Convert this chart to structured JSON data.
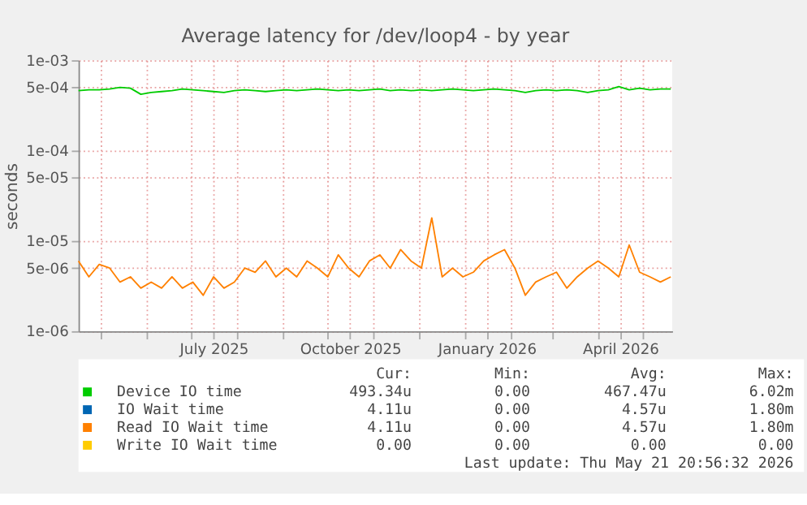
{
  "chart_data": {
    "type": "line",
    "title": "Average latency for /dev/loop4 - by year",
    "ylabel": "seconds",
    "x": [
      "2025-04-16",
      "2025-04-23",
      "2025-04-30",
      "2025-05-07",
      "2025-05-14",
      "2025-05-21",
      "2025-05-28",
      "2025-06-04",
      "2025-06-11",
      "2025-06-18",
      "2025-06-25",
      "2025-07-02",
      "2025-07-09",
      "2025-07-16",
      "2025-07-23",
      "2025-07-30",
      "2025-08-06",
      "2025-08-13",
      "2025-08-20",
      "2025-08-27",
      "2025-09-03",
      "2025-09-10",
      "2025-09-17",
      "2025-09-24",
      "2025-10-01",
      "2025-10-08",
      "2025-10-15",
      "2025-10-22",
      "2025-10-29",
      "2025-11-05",
      "2025-11-12",
      "2025-11-19",
      "2025-11-26",
      "2025-12-03",
      "2025-12-10",
      "2025-12-17",
      "2025-12-24",
      "2025-12-31",
      "2026-01-07",
      "2026-01-14",
      "2026-01-21",
      "2026-01-28",
      "2026-02-04",
      "2026-02-11",
      "2026-02-18",
      "2026-02-25",
      "2026-03-04",
      "2026-03-11",
      "2026-03-18",
      "2026-03-25",
      "2026-04-01",
      "2026-04-08",
      "2026-04-15",
      "2026-04-22",
      "2026-04-29",
      "2026-05-06",
      "2026-05-13",
      "2026-05-20"
    ],
    "series": [
      {
        "name": "Device IO time",
        "color": "#00cc00",
        "values": [
          0.00046,
          0.00047,
          0.00047,
          0.00048,
          0.0005,
          0.00049,
          0.00042,
          0.00044,
          0.00045,
          0.00046,
          0.00048,
          0.00047,
          0.00046,
          0.00045,
          0.00044,
          0.00046,
          0.00047,
          0.00046,
          0.00045,
          0.00046,
          0.00047,
          0.00046,
          0.00047,
          0.00048,
          0.00047,
          0.00046,
          0.00047,
          0.00046,
          0.00047,
          0.00048,
          0.00046,
          0.00047,
          0.00046,
          0.00047,
          0.00046,
          0.00047,
          0.00048,
          0.00047,
          0.00046,
          0.00047,
          0.00048,
          0.00047,
          0.00046,
          0.00044,
          0.00046,
          0.00047,
          0.00046,
          0.00047,
          0.00046,
          0.00044,
          0.00046,
          0.00047,
          0.00051,
          0.00047,
          0.00049,
          0.00047,
          0.00048,
          0.00048
        ]
      },
      {
        "name": "IO Wait time",
        "color": "#0066b3",
        "values": [
          null,
          null,
          null,
          null,
          null,
          null,
          null,
          null,
          null,
          null,
          null,
          null,
          null,
          null,
          null,
          null,
          null,
          null,
          null,
          null,
          null,
          null,
          null,
          null,
          null,
          null,
          null,
          null,
          null,
          null,
          null,
          null,
          null,
          null,
          null,
          null,
          null,
          null,
          null,
          null,
          null,
          null,
          null,
          null,
          null,
          null,
          null,
          null,
          null,
          null,
          null,
          null,
          null,
          null,
          null,
          null,
          null,
          null
        ]
      },
      {
        "name": "Read IO Wait time",
        "color": "#ff8000",
        "values": [
          6e-06,
          4e-06,
          5.5e-06,
          5e-06,
          3.5e-06,
          4e-06,
          3e-06,
          3.5e-06,
          3e-06,
          4e-06,
          3e-06,
          3.5e-06,
          2.5e-06,
          4e-06,
          3e-06,
          3.5e-06,
          5e-06,
          4.5e-06,
          6e-06,
          4e-06,
          5e-06,
          4e-06,
          6e-06,
          5e-06,
          4e-06,
          7e-06,
          5e-06,
          4e-06,
          6e-06,
          7e-06,
          5e-06,
          8e-06,
          6e-06,
          5e-06,
          1.8e-05,
          4e-06,
          5e-06,
          4e-06,
          4.5e-06,
          6e-06,
          7e-06,
          8e-06,
          5e-06,
          2.5e-06,
          3.5e-06,
          4e-06,
          4.5e-06,
          3e-06,
          4e-06,
          5e-06,
          6e-06,
          5e-06,
          4e-06,
          9e-06,
          4.5e-06,
          4e-06,
          3.5e-06,
          4e-06
        ]
      },
      {
        "name": "Write IO Wait time",
        "color": "#ffcc00",
        "values": [
          null,
          null,
          null,
          null,
          null,
          null,
          null,
          null,
          null,
          null,
          null,
          null,
          null,
          null,
          null,
          null,
          null,
          null,
          null,
          null,
          null,
          null,
          null,
          null,
          null,
          null,
          null,
          null,
          null,
          null,
          null,
          null,
          null,
          null,
          null,
          null,
          null,
          null,
          null,
          null,
          null,
          null,
          null,
          null,
          null,
          null,
          null,
          null,
          null,
          null,
          null,
          null,
          null,
          null,
          null,
          null,
          null,
          null
        ]
      }
    ],
    "xlim": [
      "2025-04-16",
      "2026-05-21"
    ],
    "xticks": [
      {
        "value": "2025-05-01",
        "label": null
      },
      {
        "value": "2025-06-01",
        "label": null
      },
      {
        "value": "2025-07-01",
        "label": null
      },
      {
        "value": "2025-07-16",
        "label": "July 2025"
      },
      {
        "value": "2025-08-01",
        "label": null
      },
      {
        "value": "2025-09-01",
        "label": null
      },
      {
        "value": "2025-10-01",
        "label": null
      },
      {
        "value": "2025-10-16",
        "label": "October 2025"
      },
      {
        "value": "2025-11-01",
        "label": null
      },
      {
        "value": "2025-12-01",
        "label": null
      },
      {
        "value": "2026-01-01",
        "label": null
      },
      {
        "value": "2026-01-16",
        "label": "January 2026"
      },
      {
        "value": "2026-02-01",
        "label": null
      },
      {
        "value": "2026-03-01",
        "label": null
      },
      {
        "value": "2026-04-01",
        "label": null
      },
      {
        "value": "2026-04-16",
        "label": "April 2026"
      },
      {
        "value": "2026-05-01",
        "label": null
      }
    ],
    "ylim": [
      1e-06,
      0.001
    ],
    "yticks": [
      {
        "value": 1e-06,
        "label": "1e-06"
      },
      {
        "value": 5e-06,
        "label": "5e-06"
      },
      {
        "value": 1e-05,
        "label": "1e-05"
      },
      {
        "value": 5e-05,
        "label": "5e-05"
      },
      {
        "value": 0.0001,
        "label": "1e-04"
      },
      {
        "value": 0.0005,
        "label": "5e-04"
      },
      {
        "value": 0.001,
        "label": "1e-03"
      }
    ],
    "log": true,
    "grid": true,
    "legend": "bottom",
    "annotations": [
      "Cur:",
      "Min:",
      "Avg:",
      "Max:",
      "493.34u",
      "0.00",
      "467.47u",
      "6.02m",
      "4.11u",
      "0.00",
      "4.57u",
      "1.80m",
      "4.11u",
      "0.00",
      "4.57u",
      "1.80m",
      "0.00",
      "0.00",
      "0.00",
      "0.00",
      "Last update: Thu May 21 20:56:32 2026"
    ]
  }
}
